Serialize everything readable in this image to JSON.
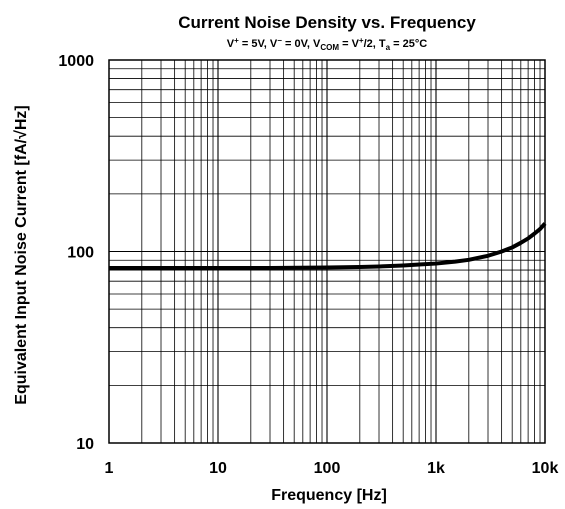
{
  "chart_data": {
    "type": "line",
    "title": "Current Noise Density vs. Frequency",
    "subtitle": {
      "vplus_base": "V",
      "vplus_sup": "+",
      "vplus_val": " = 5V, ",
      "vminus_base": "V",
      "vminus_sup": "−",
      "vminus_val": " = 0V, ",
      "vcom_base": "V",
      "vcom_sub": "COM",
      "vcom_eq": " = V",
      "vcom_sup": "+",
      "vcom_val": "/2, ",
      "ta_base": "T",
      "ta_sub": "a",
      "ta_val": " = 25°C"
    },
    "xlabel": "Frequency [Hz]",
    "ylabel": "Equivalent Input Noise Current [fA/√Hz]",
    "x_scale": "log",
    "y_scale": "log",
    "xlim": [
      1,
      10000
    ],
    "ylim": [
      10,
      1000
    ],
    "x_ticks": [
      {
        "value": 1,
        "label": "1"
      },
      {
        "value": 10,
        "label": "10"
      },
      {
        "value": 100,
        "label": "100"
      },
      {
        "value": 1000,
        "label": "1k"
      },
      {
        "value": 10000,
        "label": "10k"
      }
    ],
    "y_ticks": [
      {
        "value": 10,
        "label": "10"
      },
      {
        "value": 100,
        "label": "100"
      },
      {
        "value": 1000,
        "label": "1000"
      }
    ],
    "grid": true,
    "series": [
      {
        "color": "#000000",
        "x": [
          1,
          3,
          10,
          30,
          100,
          200,
          300,
          500,
          700,
          1000,
          1500,
          2000,
          3000,
          4000,
          5000,
          6000,
          7000,
          8000,
          9000,
          10000
        ],
        "y": [
          82,
          82,
          82,
          82,
          82.5,
          83,
          83.5,
          84.5,
          85.5,
          86.5,
          88.5,
          90.5,
          95,
          100,
          105,
          111,
          117,
          124,
          131,
          140
        ]
      }
    ]
  }
}
